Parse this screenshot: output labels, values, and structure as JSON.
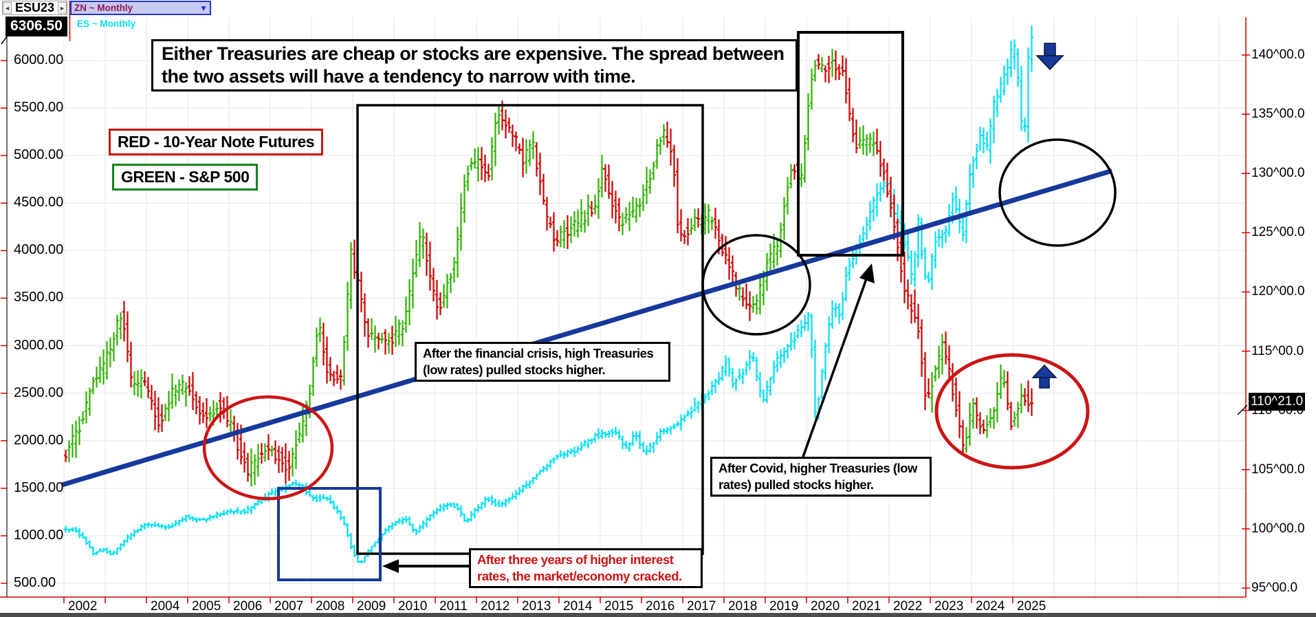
{
  "app": {
    "symbol": "ESU23",
    "price_badge": "6306.50",
    "series_selector": {
      "selected": "ZN ~ Monthly",
      "secondary": "ES ~ Monthly"
    }
  },
  "icons": {
    "prev": "◄",
    "next": "►",
    "dropdown": "▼"
  },
  "legend": {
    "red_label": "RED - 10-Year Note Futures",
    "green_label": "GREEN - S&P 500"
  },
  "annotations": {
    "headline": "Either Treasuries are cheap or stocks are expensive. The spread between the two assets will have a tendency to narrow with time.",
    "financial_crisis": "After the financial crisis, high Treasuries (low rates) pulled stocks higher.",
    "covid": "After Covid, higher Treasuries (low rates) pulled stocks higher.",
    "cracked": "After three years of higher interest rates, the market/economy cracked."
  },
  "axes": {
    "left": {
      "values": [
        6000,
        5500,
        5000,
        4500,
        4000,
        3500,
        3000,
        2500,
        2000,
        1500,
        1000,
        500
      ],
      "labels": [
        "6000.00",
        "5500.00",
        "5000.00",
        "4500.00",
        "4000.00",
        "3500.00",
        "3000.00",
        "2500.00",
        "2000.00",
        "1500.00",
        "1000.00",
        "500.00"
      ]
    },
    "right": {
      "values": [
        140,
        135,
        130,
        125,
        120,
        115,
        110,
        105,
        100,
        95
      ],
      "labels": [
        "140^00.0",
        "135^00.0",
        "130^00.0",
        "125^00.0",
        "120^00.0",
        "115^00.0",
        "110^00.0",
        "105^00.0",
        "100^00.0",
        "95^00.0"
      ],
      "badge": "110^21.0"
    },
    "x": {
      "years": [
        2002,
        2004,
        2005,
        2006,
        2007,
        2008,
        2009,
        2010,
        2011,
        2012,
        2013,
        2014,
        2015,
        2016,
        2017,
        2018,
        2019,
        2020,
        2021,
        2022,
        2023,
        2024,
        2025
      ]
    }
  },
  "colors": {
    "zn_up": "#2db200",
    "zn_down": "#cc0000",
    "es": "#00dff2",
    "trend": "#16399b",
    "shape_red": "#cc1414",
    "grid": "#e5e5e5",
    "axis_red": "#cc0000"
  },
  "chart_data": {
    "type": "mixed",
    "description": "Monthly OHLC overlay: ZN 10-Year Note futures (right axis, 95^00-140^00) and ES S&P 500 (left axis, 500-6306.50), 2002-2025, with hand-drawn trendline and annotation shapes.",
    "x_range": [
      2002.0,
      2025.5
    ],
    "left_axis_range": [
      500,
      6306.5
    ],
    "right_axis_range": [
      95,
      141
    ],
    "series": [
      {
        "name": "ZN 10-Year Note Futures",
        "type": "ohlc",
        "axis": "right",
        "anchors": [
          [
            2002.0,
            106.0
          ],
          [
            2002.4,
            108.5
          ],
          [
            2002.75,
            112.5
          ],
          [
            2003.0,
            113.5
          ],
          [
            2003.45,
            118.5
          ],
          [
            2003.65,
            112.5
          ],
          [
            2003.95,
            112.5
          ],
          [
            2004.35,
            109.0
          ],
          [
            2004.7,
            112.0
          ],
          [
            2005.05,
            112.0
          ],
          [
            2005.45,
            109.5
          ],
          [
            2005.8,
            110.5
          ],
          [
            2006.1,
            108.5
          ],
          [
            2006.5,
            104.8
          ],
          [
            2006.9,
            106.8
          ],
          [
            2007.2,
            106.2
          ],
          [
            2007.5,
            105.2
          ],
          [
            2007.95,
            110.5
          ],
          [
            2008.2,
            117.5
          ],
          [
            2008.45,
            113.0
          ],
          [
            2008.75,
            112.5
          ],
          [
            2009.0,
            123.5
          ],
          [
            2009.4,
            116.5
          ],
          [
            2009.95,
            115.8
          ],
          [
            2010.3,
            117.5
          ],
          [
            2010.7,
            125.0
          ],
          [
            2010.95,
            120.5
          ],
          [
            2011.15,
            118.5
          ],
          [
            2011.5,
            122.5
          ],
          [
            2011.8,
            130.2
          ],
          [
            2012.1,
            131.0
          ],
          [
            2012.3,
            129.5
          ],
          [
            2012.55,
            135.0
          ],
          [
            2012.95,
            133.0
          ],
          [
            2013.2,
            131.0
          ],
          [
            2013.4,
            133.0
          ],
          [
            2013.7,
            126.5
          ],
          [
            2013.95,
            124.5
          ],
          [
            2014.4,
            125.5
          ],
          [
            2014.95,
            127.5
          ],
          [
            2015.1,
            130.2
          ],
          [
            2015.5,
            126.0
          ],
          [
            2015.95,
            127.0
          ],
          [
            2016.3,
            130.5
          ],
          [
            2016.55,
            133.8
          ],
          [
            2016.8,
            131.5
          ],
          [
            2016.95,
            124.5
          ],
          [
            2017.3,
            125.8
          ],
          [
            2017.7,
            126.5
          ],
          [
            2018.05,
            123.0
          ],
          [
            2018.4,
            120.0
          ],
          [
            2018.8,
            118.5
          ],
          [
            2019.05,
            122.0
          ],
          [
            2019.35,
            124.0
          ],
          [
            2019.65,
            130.8
          ],
          [
            2019.9,
            129.5
          ],
          [
            2020.2,
            139.3
          ],
          [
            2020.45,
            138.8
          ],
          [
            2020.65,
            139.6
          ],
          [
            2020.95,
            138.0
          ],
          [
            2021.2,
            132.5
          ],
          [
            2021.55,
            133.0
          ],
          [
            2021.9,
            130.5
          ],
          [
            2022.1,
            127.0
          ],
          [
            2022.45,
            119.5
          ],
          [
            2022.7,
            118.0
          ],
          [
            2022.95,
            110.5
          ],
          [
            2023.15,
            113.5
          ],
          [
            2023.35,
            116.0
          ],
          [
            2023.6,
            111.5
          ],
          [
            2023.85,
            106.5
          ],
          [
            2024.05,
            110.5
          ],
          [
            2024.35,
            108.0
          ],
          [
            2024.6,
            110.5
          ],
          [
            2024.8,
            113.5
          ],
          [
            2025.0,
            108.8
          ],
          [
            2025.25,
            111.5
          ],
          [
            2025.45,
            110.66
          ]
        ],
        "last_price": "110^21.0"
      },
      {
        "name": "ES S&P 500",
        "type": "ohlc",
        "axis": "left",
        "anchors": [
          [
            2002.0,
            1075
          ],
          [
            2002.3,
            1065
          ],
          [
            2002.55,
            950
          ],
          [
            2002.75,
            815
          ],
          [
            2003.0,
            855
          ],
          [
            2003.2,
            800
          ],
          [
            2003.6,
            990
          ],
          [
            2004.0,
            1115
          ],
          [
            2004.6,
            1095
          ],
          [
            2005.0,
            1200
          ],
          [
            2005.35,
            1160
          ],
          [
            2005.95,
            1250
          ],
          [
            2006.45,
            1260
          ],
          [
            2007.0,
            1430
          ],
          [
            2007.55,
            1540
          ],
          [
            2007.8,
            1530
          ],
          [
            2008.05,
            1390
          ],
          [
            2008.4,
            1400
          ],
          [
            2008.65,
            1270
          ],
          [
            2008.85,
            1100
          ],
          [
            2009.0,
            880
          ],
          [
            2009.2,
            700
          ],
          [
            2009.55,
            920
          ],
          [
            2009.95,
            1110
          ],
          [
            2010.3,
            1190
          ],
          [
            2010.55,
            1030
          ],
          [
            2010.95,
            1230
          ],
          [
            2011.15,
            1290
          ],
          [
            2011.35,
            1345
          ],
          [
            2011.6,
            1290
          ],
          [
            2011.78,
            1130
          ],
          [
            2011.95,
            1250
          ],
          [
            2012.3,
            1400
          ],
          [
            2012.55,
            1320
          ],
          [
            2012.95,
            1420
          ],
          [
            2013.4,
            1600
          ],
          [
            2013.95,
            1840
          ],
          [
            2014.45,
            1900
          ],
          [
            2014.95,
            2060
          ],
          [
            2015.4,
            2110
          ],
          [
            2015.65,
            1920
          ],
          [
            2015.9,
            2070
          ],
          [
            2016.12,
            1850
          ],
          [
            2016.5,
            2095
          ],
          [
            2016.9,
            2180
          ],
          [
            2017.4,
            2390
          ],
          [
            2017.95,
            2670
          ],
          [
            2018.07,
            2860
          ],
          [
            2018.25,
            2610
          ],
          [
            2018.5,
            2730
          ],
          [
            2018.72,
            2910
          ],
          [
            2018.97,
            2400
          ],
          [
            2019.3,
            2830
          ],
          [
            2019.55,
            2950
          ],
          [
            2019.95,
            3230
          ],
          [
            2020.12,
            3340
          ],
          [
            2020.26,
            2210
          ],
          [
            2020.55,
            3150
          ],
          [
            2020.7,
            3420
          ],
          [
            2020.85,
            3300
          ],
          [
            2021.0,
            3760
          ],
          [
            2021.4,
            4180
          ],
          [
            2021.7,
            4530
          ],
          [
            2021.98,
            4780
          ],
          [
            2022.15,
            4370
          ],
          [
            2022.4,
            4130
          ],
          [
            2022.6,
            3680
          ],
          [
            2022.75,
            4290
          ],
          [
            2022.95,
            3590
          ],
          [
            2023.15,
            4100
          ],
          [
            2023.4,
            4180
          ],
          [
            2023.58,
            4580
          ],
          [
            2023.82,
            4140
          ],
          [
            2024.0,
            4780
          ],
          [
            2024.25,
            5250
          ],
          [
            2024.4,
            5050
          ],
          [
            2024.6,
            5560
          ],
          [
            2024.8,
            5780
          ],
          [
            2024.98,
            6090
          ],
          [
            2025.12,
            6120
          ],
          [
            2025.3,
            5000
          ],
          [
            2025.45,
            6300
          ]
        ],
        "last_price": "6306.50"
      }
    ],
    "trendline": {
      "axis": "left",
      "points": [
        [
          2001.95,
          1535
        ],
        [
          2027.4,
          4840
        ]
      ]
    }
  }
}
